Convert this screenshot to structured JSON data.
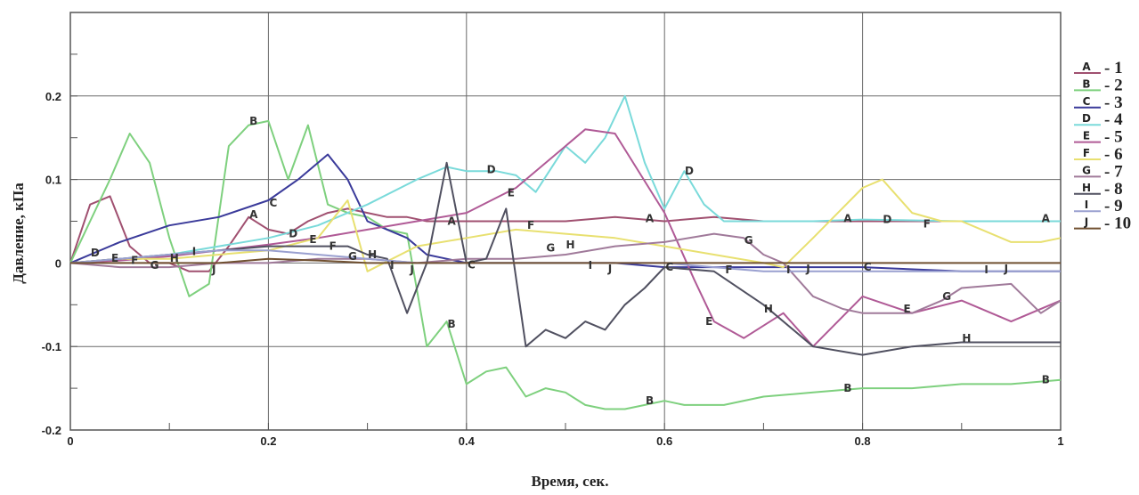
{
  "chart_data": {
    "type": "line",
    "xlabel": "Время, сек.",
    "ylabel": "Давление, кПа",
    "xlim": [
      0,
      1
    ],
    "ylim": [
      -0.2,
      0.3
    ],
    "xticks": [
      "0",
      "0.2",
      "0.4",
      "0.6",
      "0.8",
      "1"
    ],
    "yticks": [
      "-0.2",
      "-0.1",
      "0",
      "0.1",
      "0.2"
    ],
    "grid": true,
    "legend_position": "right",
    "legend": [
      {
        "marker": "A",
        "label": "- 1"
      },
      {
        "marker": "B",
        "label": "- 2"
      },
      {
        "marker": "C",
        "label": "- 3"
      },
      {
        "marker": "D",
        "label": "- 4"
      },
      {
        "marker": "E",
        "label": "- 5"
      },
      {
        "marker": "F",
        "label": "- 6"
      },
      {
        "marker": "G",
        "label": "- 7"
      },
      {
        "marker": "H",
        "label": "- 8"
      },
      {
        "marker": "I",
        "label": "- 9"
      },
      {
        "marker": "J",
        "label": "- 10"
      }
    ],
    "series": [
      {
        "name": "A",
        "color": "#a05070",
        "x": [
          0,
          0.02,
          0.04,
          0.06,
          0.08,
          0.1,
          0.12,
          0.14,
          0.16,
          0.18,
          0.2,
          0.22,
          0.24,
          0.26,
          0.28,
          0.3,
          0.32,
          0.34,
          0.36,
          0.38,
          0.4,
          0.45,
          0.5,
          0.55,
          0.6,
          0.65,
          0.7,
          0.75,
          0.8,
          0.9,
          1.0
        ],
        "y": [
          0,
          0.07,
          0.08,
          0.02,
          0,
          0,
          -0.01,
          -0.01,
          0.02,
          0.055,
          0.04,
          0.035,
          0.05,
          0.06,
          0.065,
          0.06,
          0.055,
          0.055,
          0.05,
          0.05,
          0.05,
          0.05,
          0.05,
          0.055,
          0.05,
          0.055,
          0.05,
          0.05,
          0.05,
          0.05,
          0.05
        ],
        "markers": [
          {
            "x": 0.185,
            "y": 0.058
          },
          {
            "x": 0.385,
            "y": 0.05
          },
          {
            "x": 0.585,
            "y": 0.053
          },
          {
            "x": 0.785,
            "y": 0.053
          },
          {
            "x": 0.985,
            "y": 0.053
          }
        ]
      },
      {
        "name": "B",
        "color": "#7ed07e",
        "x": [
          0,
          0.02,
          0.04,
          0.06,
          0.08,
          0.1,
          0.12,
          0.14,
          0.16,
          0.18,
          0.2,
          0.22,
          0.24,
          0.26,
          0.28,
          0.3,
          0.32,
          0.34,
          0.36,
          0.38,
          0.4,
          0.42,
          0.44,
          0.46,
          0.48,
          0.5,
          0.52,
          0.54,
          0.56,
          0.58,
          0.6,
          0.62,
          0.64,
          0.66,
          0.7,
          0.75,
          0.8,
          0.85,
          0.9,
          0.95,
          1.0
        ],
        "y": [
          0,
          0.05,
          0.1,
          0.155,
          0.12,
          0.03,
          -0.04,
          -0.025,
          0.14,
          0.165,
          0.17,
          0.1,
          0.165,
          0.07,
          0.06,
          0.055,
          0.04,
          0.035,
          -0.1,
          -0.07,
          -0.145,
          -0.13,
          -0.125,
          -0.16,
          -0.15,
          -0.155,
          -0.17,
          -0.175,
          -0.175,
          -0.17,
          -0.165,
          -0.17,
          -0.17,
          -0.17,
          -0.16,
          -0.155,
          -0.15,
          -0.15,
          -0.145,
          -0.145,
          -0.14
        ],
        "markers": [
          {
            "x": 0.185,
            "y": 0.17
          },
          {
            "x": 0.385,
            "y": -0.073
          },
          {
            "x": 0.585,
            "y": -0.165
          },
          {
            "x": 0.785,
            "y": -0.15
          },
          {
            "x": 0.985,
            "y": -0.14
          }
        ]
      },
      {
        "name": "C",
        "color": "#3a3a9a",
        "x": [
          0,
          0.05,
          0.1,
          0.15,
          0.2,
          0.23,
          0.26,
          0.28,
          0.3,
          0.32,
          0.34,
          0.36,
          0.38,
          0.4,
          0.45,
          0.5,
          0.55,
          0.6,
          0.65,
          0.7,
          0.8,
          0.9,
          1.0
        ],
        "y": [
          0,
          0.025,
          0.045,
          0.055,
          0.075,
          0.1,
          0.13,
          0.1,
          0.05,
          0.04,
          0.03,
          0.01,
          0.005,
          0,
          0,
          0,
          0,
          -0.005,
          -0.005,
          -0.005,
          -0.005,
          -0.01,
          -0.01
        ],
        "markers": [
          {
            "x": 0.205,
            "y": 0.072
          },
          {
            "x": 0.405,
            "y": -0.002
          },
          {
            "x": 0.605,
            "y": -0.005
          },
          {
            "x": 0.805,
            "y": -0.005
          }
        ]
      },
      {
        "name": "D",
        "color": "#7adada",
        "x": [
          0,
          0.05,
          0.1,
          0.15,
          0.2,
          0.25,
          0.3,
          0.35,
          0.38,
          0.4,
          0.43,
          0.45,
          0.47,
          0.5,
          0.52,
          0.54,
          0.56,
          0.58,
          0.6,
          0.62,
          0.64,
          0.66,
          0.7,
          0.75,
          0.8,
          0.9,
          1.0
        ],
        "y": [
          0,
          0.005,
          0.01,
          0.02,
          0.03,
          0.045,
          0.07,
          0.1,
          0.115,
          0.11,
          0.11,
          0.105,
          0.085,
          0.14,
          0.12,
          0.15,
          0.2,
          0.12,
          0.065,
          0.11,
          0.07,
          0.05,
          0.05,
          0.05,
          0.052,
          0.05,
          0.05
        ],
        "markers": [
          {
            "x": 0.025,
            "y": 0.012
          },
          {
            "x": 0.225,
            "y": 0.035
          },
          {
            "x": 0.425,
            "y": 0.112
          },
          {
            "x": 0.625,
            "y": 0.11
          },
          {
            "x": 0.825,
            "y": 0.052
          }
        ]
      },
      {
        "name": "E",
        "color": "#b05a96",
        "x": [
          0,
          0.05,
          0.1,
          0.15,
          0.2,
          0.25,
          0.3,
          0.35,
          0.4,
          0.45,
          0.5,
          0.52,
          0.55,
          0.6,
          0.63,
          0.65,
          0.68,
          0.72,
          0.75,
          0.8,
          0.85,
          0.9,
          0.95,
          1.0
        ],
        "y": [
          0,
          0.003,
          0.008,
          0.015,
          0.022,
          0.03,
          0.04,
          0.05,
          0.06,
          0.09,
          0.14,
          0.16,
          0.155,
          0.06,
          -0.02,
          -0.07,
          -0.09,
          -0.06,
          -0.1,
          -0.04,
          -0.06,
          -0.045,
          -0.07,
          -0.045
        ],
        "markers": [
          {
            "x": 0.045,
            "y": 0.006
          },
          {
            "x": 0.245,
            "y": 0.028
          },
          {
            "x": 0.445,
            "y": 0.084
          },
          {
            "x": 0.645,
            "y": -0.07
          },
          {
            "x": 0.845,
            "y": -0.055
          }
        ]
      },
      {
        "name": "F",
        "color": "#e8e070",
        "x": [
          0,
          0.05,
          0.1,
          0.15,
          0.2,
          0.25,
          0.28,
          0.3,
          0.35,
          0.4,
          0.45,
          0.5,
          0.55,
          0.6,
          0.65,
          0.7,
          0.72,
          0.75,
          0.8,
          0.82,
          0.85,
          0.88,
          0.9,
          0.95,
          0.98,
          1.0
        ],
        "y": [
          0,
          0.005,
          0.005,
          0.01,
          0.015,
          0.03,
          0.075,
          -0.01,
          0.02,
          0.03,
          0.04,
          0.035,
          0.03,
          0.02,
          0.01,
          0.0,
          -0.005,
          0.03,
          0.09,
          0.1,
          0.06,
          0.05,
          0.05,
          0.025,
          0.025,
          0.03
        ],
        "markers": [
          {
            "x": 0.065,
            "y": 0.003
          },
          {
            "x": 0.265,
            "y": 0.02
          },
          {
            "x": 0.465,
            "y": 0.045
          },
          {
            "x": 0.665,
            "y": -0.008
          },
          {
            "x": 0.865,
            "y": 0.047
          }
        ]
      },
      {
        "name": "G",
        "color": "#a07a9a",
        "x": [
          0,
          0.05,
          0.1,
          0.15,
          0.2,
          0.25,
          0.3,
          0.35,
          0.4,
          0.45,
          0.5,
          0.55,
          0.6,
          0.65,
          0.68,
          0.7,
          0.72,
          0.75,
          0.78,
          0.8,
          0.85,
          0.88,
          0.9,
          0.95,
          0.98,
          1.0
        ],
        "y": [
          0,
          -0.005,
          -0.005,
          0.0,
          0.0,
          0.005,
          0.005,
          0.0,
          0.005,
          0.005,
          0.01,
          0.02,
          0.025,
          0.035,
          0.03,
          0.01,
          0.0,
          -0.04,
          -0.055,
          -0.06,
          -0.06,
          -0.045,
          -0.03,
          -0.025,
          -0.06,
          -0.045
        ],
        "markers": [
          {
            "x": 0.085,
            "y": -0.003
          },
          {
            "x": 0.285,
            "y": 0.008
          },
          {
            "x": 0.485,
            "y": 0.018
          },
          {
            "x": 0.685,
            "y": 0.027
          },
          {
            "x": 0.885,
            "y": -0.04
          }
        ]
      },
      {
        "name": "H",
        "color": "#505060",
        "x": [
          0,
          0.05,
          0.1,
          0.15,
          0.2,
          0.25,
          0.28,
          0.3,
          0.32,
          0.34,
          0.36,
          0.38,
          0.4,
          0.42,
          0.44,
          0.46,
          0.48,
          0.5,
          0.52,
          0.54,
          0.56,
          0.58,
          0.6,
          0.65,
          0.7,
          0.75,
          0.8,
          0.85,
          0.9,
          1.0
        ],
        "y": [
          0,
          0.005,
          0.01,
          0.015,
          0.02,
          0.02,
          0.02,
          0.01,
          0.005,
          -0.06,
          0.0,
          0.12,
          0.0,
          0.005,
          0.065,
          -0.1,
          -0.08,
          -0.09,
          -0.07,
          -0.08,
          -0.05,
          -0.03,
          -0.005,
          -0.01,
          -0.05,
          -0.1,
          -0.11,
          -0.1,
          -0.095,
          -0.095
        ],
        "markers": [
          {
            "x": 0.105,
            "y": 0.006
          },
          {
            "x": 0.305,
            "y": 0.01
          },
          {
            "x": 0.505,
            "y": 0.022
          },
          {
            "x": 0.705,
            "y": -0.055
          },
          {
            "x": 0.905,
            "y": -0.09
          }
        ]
      },
      {
        "name": "I",
        "color": "#9aa0d0",
        "x": [
          0,
          0.05,
          0.1,
          0.15,
          0.2,
          0.25,
          0.3,
          0.35,
          0.4,
          0.45,
          0.5,
          0.55,
          0.6,
          0.65,
          0.7,
          0.75,
          0.8,
          0.9,
          1.0
        ],
        "y": [
          0,
          0.005,
          0.01,
          0.015,
          0.015,
          0.01,
          0.005,
          0.0,
          0.0,
          0.0,
          0.0,
          0.0,
          0.0,
          -0.005,
          -0.01,
          -0.01,
          -0.01,
          -0.01,
          -0.01
        ],
        "markers": [
          {
            "x": 0.125,
            "y": 0.014
          },
          {
            "x": 0.325,
            "y": -0.003
          },
          {
            "x": 0.525,
            "y": -0.003
          },
          {
            "x": 0.725,
            "y": -0.008
          },
          {
            "x": 0.925,
            "y": -0.008
          }
        ]
      },
      {
        "name": "J",
        "color": "#705030",
        "x": [
          0,
          0.05,
          0.1,
          0.15,
          0.2,
          0.25,
          0.3,
          0.35,
          0.4,
          0.45,
          0.5,
          0.55,
          0.6,
          0.7,
          0.8,
          0.9,
          1.0
        ],
        "y": [
          0,
          0.0,
          0.0,
          0.0,
          0.005,
          0.003,
          0.0,
          0.0,
          0.0,
          0.0,
          0.0,
          0.0,
          0.0,
          0.0,
          0.0,
          0.0,
          0.0
        ],
        "markers": [
          {
            "x": 0.145,
            "y": -0.008
          },
          {
            "x": 0.345,
            "y": -0.008
          },
          {
            "x": 0.545,
            "y": -0.007
          },
          {
            "x": 0.745,
            "y": -0.007
          },
          {
            "x": 0.945,
            "y": -0.007
          }
        ]
      }
    ]
  }
}
